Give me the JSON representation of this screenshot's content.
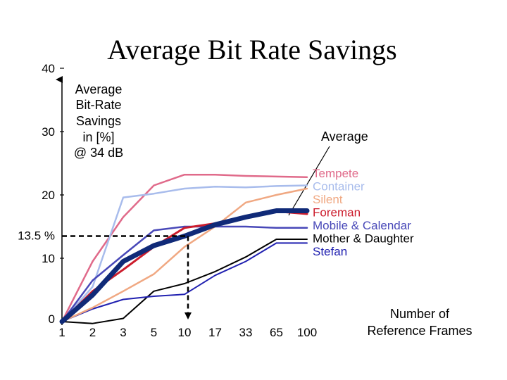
{
  "chart_data": {
    "type": "line",
    "title": "Average Bit Rate Savings",
    "ylabel_lines": [
      "Average",
      "Bit-Rate",
      "Savings",
      "in [%]",
      "@ 34 dB"
    ],
    "xlabel_lines": [
      "Number of",
      "Reference Frames"
    ],
    "x_categories": [
      "1",
      "2",
      "3",
      "5",
      "10",
      "17",
      "33",
      "65",
      "100"
    ],
    "y_ticks": [
      "0",
      "10",
      "20",
      "30",
      "40"
    ],
    "ylim": [
      0,
      40
    ],
    "grid": false,
    "marker": {
      "label": "13.5 %",
      "y": 13.5,
      "x_category": "10"
    },
    "average_label": "Average",
    "series": [
      {
        "name": "Tempete",
        "color": "#e06a8a",
        "width": 2.5,
        "values": [
          0,
          9.5,
          16.5,
          21.5,
          23.2,
          23.2,
          23.0,
          22.9,
          22.8
        ]
      },
      {
        "name": "Container",
        "color": "#a8bcec",
        "width": 2.5,
        "values": [
          0,
          5.5,
          19.6,
          20.2,
          21.0,
          21.3,
          21.2,
          21.4,
          21.5
        ]
      },
      {
        "name": "Silent",
        "color": "#f0a882",
        "width": 2.5,
        "values": [
          0,
          2.2,
          4.8,
          7.5,
          11.8,
          15.0,
          18.8,
          20.0,
          21.0
        ]
      },
      {
        "name": "Foreman",
        "color": "#cc1c2c",
        "width": 3,
        "values": [
          0,
          4.8,
          8.2,
          11.8,
          14.8,
          15.5,
          16.6,
          17.4,
          17.0
        ]
      },
      {
        "name": "Mobile & Calendar",
        "color": "#4848b8",
        "width": 2.5,
        "values": [
          0,
          6.5,
          10.5,
          14.4,
          15.0,
          15.0,
          15.0,
          14.8,
          14.8
        ]
      },
      {
        "name": "Mother & Daughter",
        "color": "#000000",
        "width": 2,
        "values": [
          0,
          -0.3,
          0.5,
          4.8,
          6.0,
          7.9,
          10.2,
          13.0,
          13.0
        ]
      },
      {
        "name": "Stefan",
        "color": "#2020b0",
        "width": 2,
        "values": [
          0,
          2.0,
          3.5,
          4.0,
          4.3,
          7.3,
          9.5,
          12.4,
          12.4
        ]
      },
      {
        "name": "Average",
        "color": "#102a78",
        "width": 7,
        "legend": false,
        "values": [
          0,
          4.2,
          9.5,
          12.0,
          13.5,
          15.3,
          16.5,
          17.5,
          17.5
        ]
      }
    ]
  }
}
